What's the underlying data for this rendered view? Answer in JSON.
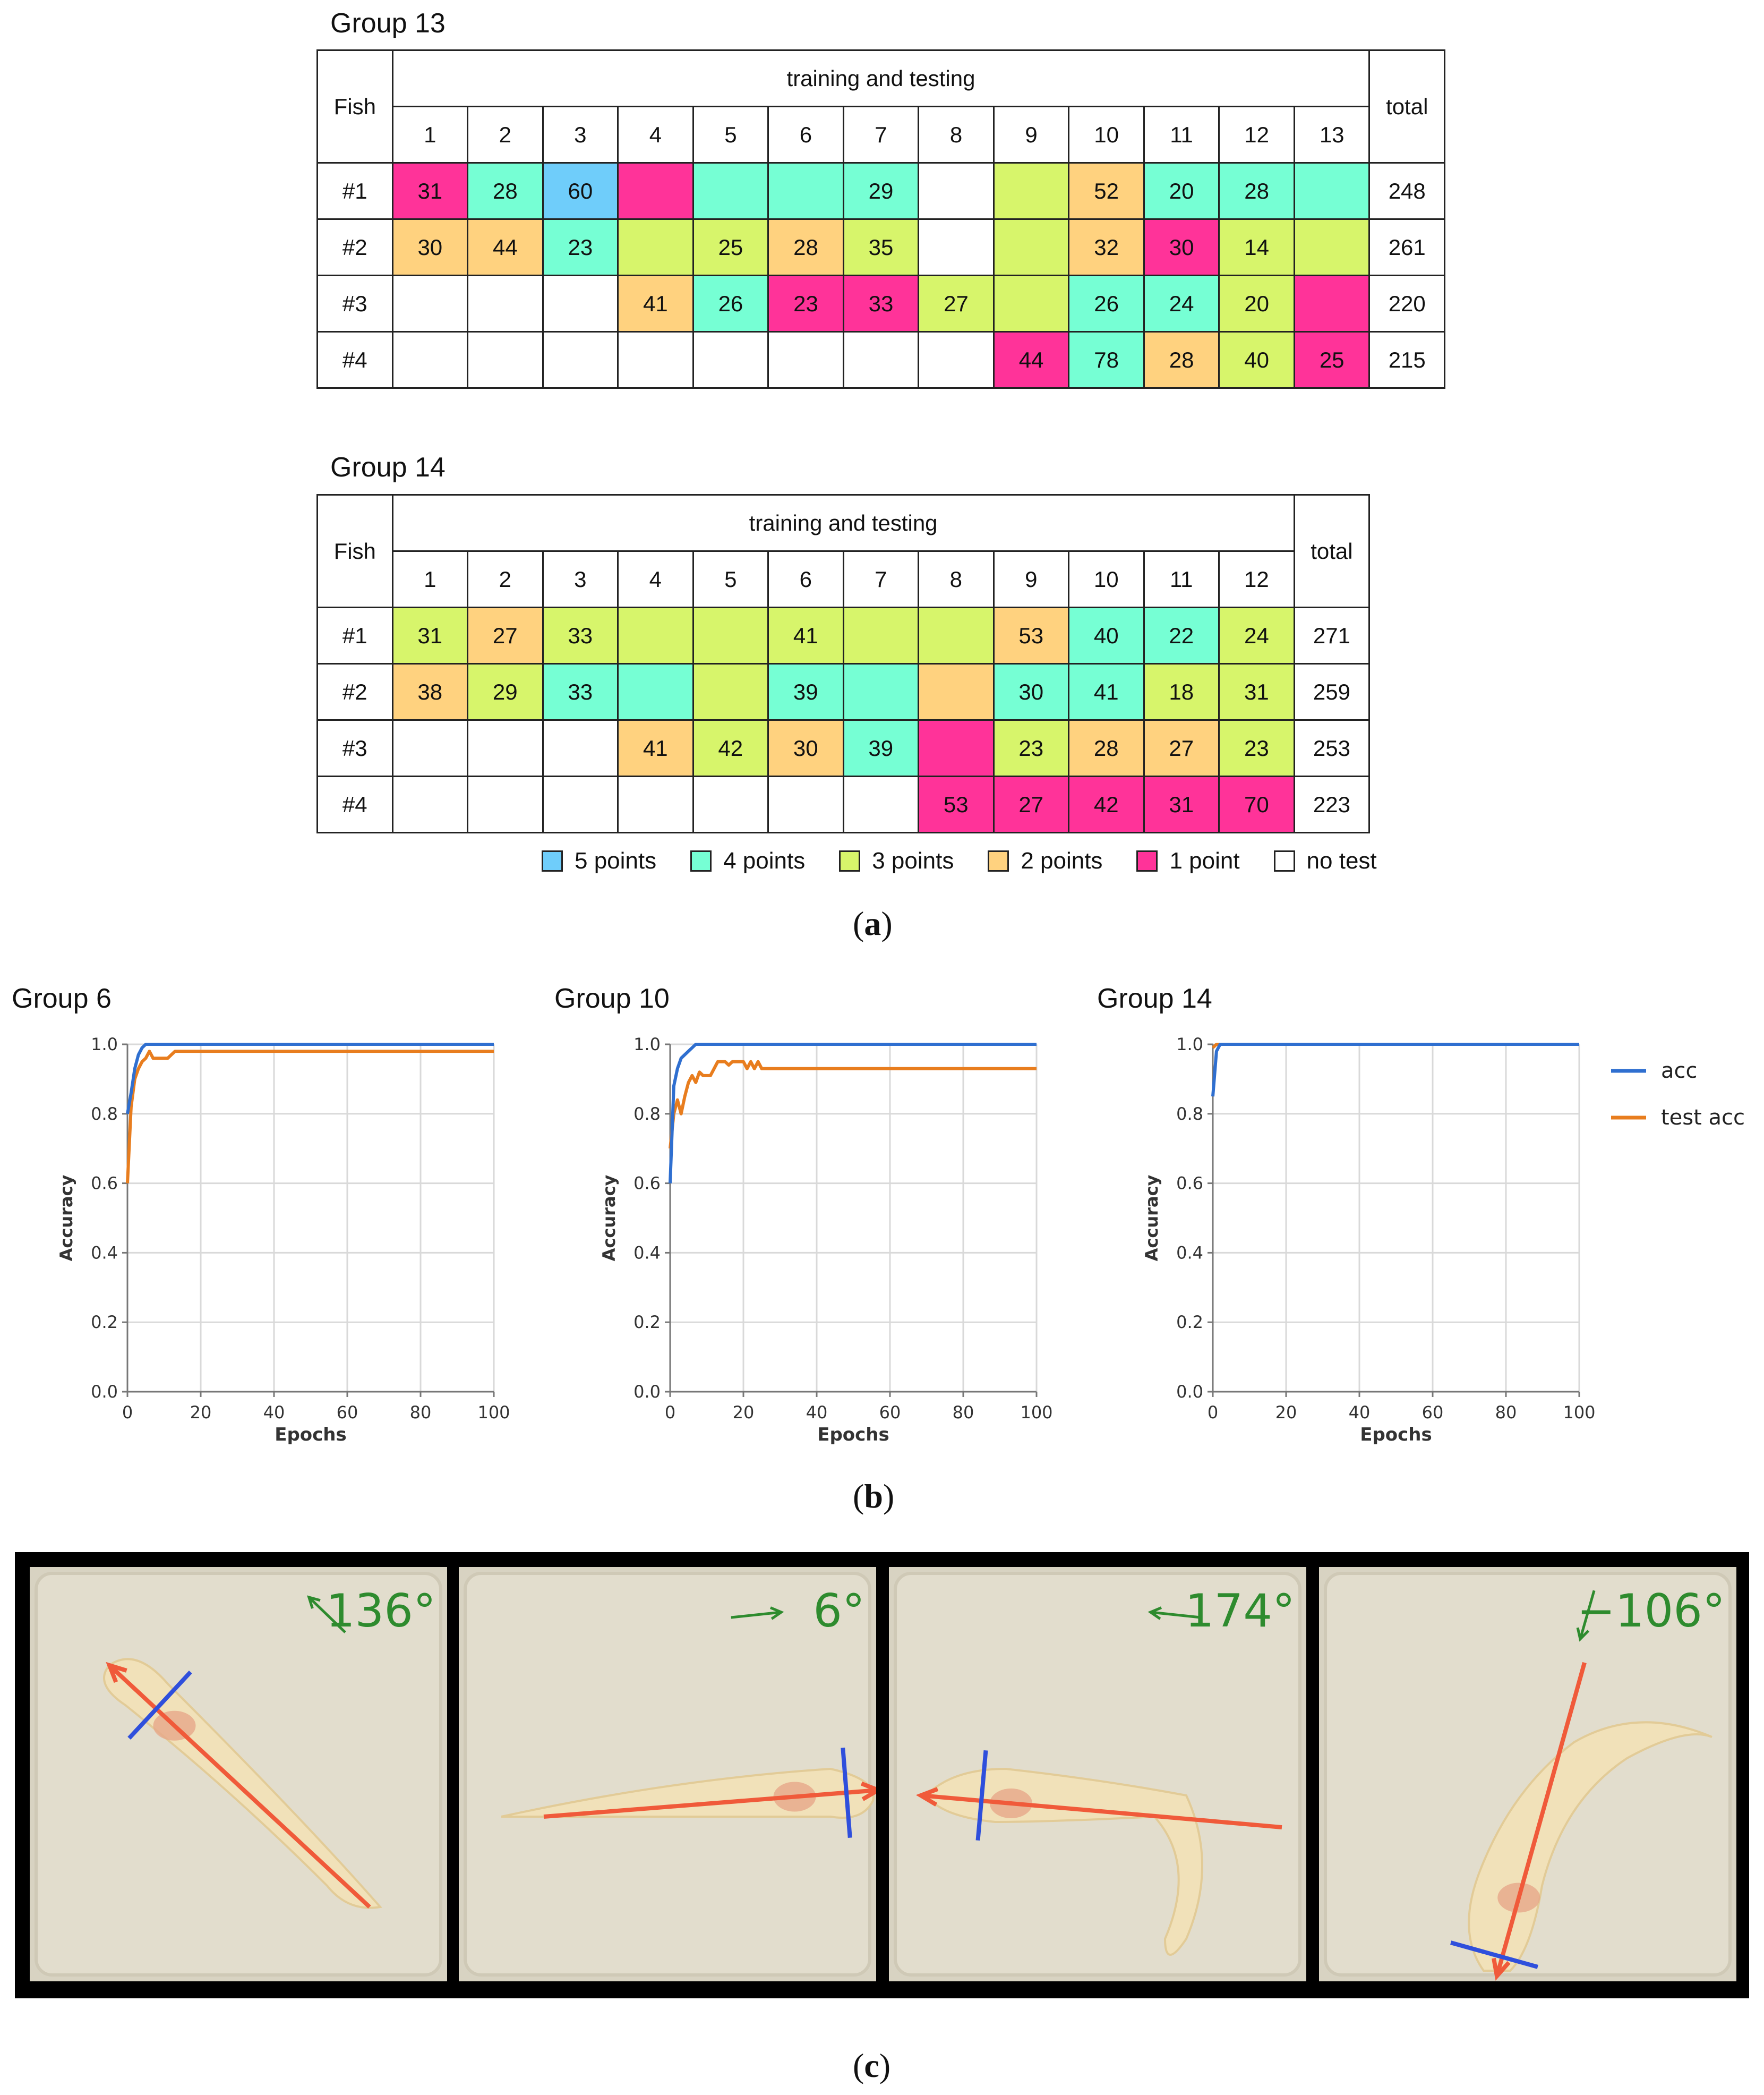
{
  "panel_a": {
    "label": "a",
    "legend": [
      {
        "label": "5 points",
        "color": "#6fcdfa"
      },
      {
        "label": "4 points",
        "color": "#76ffd4"
      },
      {
        "label": "3 points",
        "color": "#d7f56b"
      },
      {
        "label": "2 points",
        "color": "#ffd27f"
      },
      {
        "label": "1 point",
        "color": "#ff3399"
      },
      {
        "label": "no test",
        "color": "#ffffff"
      }
    ],
    "tables": [
      {
        "title": "Group 13",
        "fish_header": "Fish",
        "group_header": "training and testing",
        "total_header": "total",
        "columns": [
          "1",
          "2",
          "3",
          "4",
          "5",
          "6",
          "7",
          "8",
          "9",
          "10",
          "11",
          "12",
          "13"
        ],
        "rows": [
          {
            "fish": "#1",
            "total": "248",
            "cells": [
              {
                "v": "31",
                "c": "1"
              },
              {
                "v": "28",
                "c": "4"
              },
              {
                "v": "60",
                "c": "5"
              },
              {
                "v": "",
                "c": "1"
              },
              {
                "v": "",
                "c": "4"
              },
              {
                "v": "",
                "c": "4"
              },
              {
                "v": "29",
                "c": "4"
              },
              {
                "v": "",
                "c": "0"
              },
              {
                "v": "",
                "c": "3"
              },
              {
                "v": "52",
                "c": "2"
              },
              {
                "v": "20",
                "c": "4"
              },
              {
                "v": "28",
                "c": "4"
              },
              {
                "v": "",
                "c": "4"
              }
            ]
          },
          {
            "fish": "#2",
            "total": "261",
            "cells": [
              {
                "v": "30",
                "c": "2"
              },
              {
                "v": "44",
                "c": "2"
              },
              {
                "v": "23",
                "c": "4"
              },
              {
                "v": "",
                "c": "3"
              },
              {
                "v": "25",
                "c": "3"
              },
              {
                "v": "28",
                "c": "2"
              },
              {
                "v": "35",
                "c": "3"
              },
              {
                "v": "",
                "c": "0"
              },
              {
                "v": "",
                "c": "3"
              },
              {
                "v": "32",
                "c": "2"
              },
              {
                "v": "30",
                "c": "1"
              },
              {
                "v": "14",
                "c": "3"
              },
              {
                "v": "",
                "c": "3"
              }
            ]
          },
          {
            "fish": "#3",
            "total": "220",
            "cells": [
              {
                "v": "",
                "c": "0"
              },
              {
                "v": "",
                "c": "0"
              },
              {
                "v": "",
                "c": "0"
              },
              {
                "v": "41",
                "c": "2"
              },
              {
                "v": "26",
                "c": "4"
              },
              {
                "v": "23",
                "c": "1"
              },
              {
                "v": "33",
                "c": "1"
              },
              {
                "v": "27",
                "c": "3"
              },
              {
                "v": "",
                "c": "3"
              },
              {
                "v": "26",
                "c": "4"
              },
              {
                "v": "24",
                "c": "4"
              },
              {
                "v": "20",
                "c": "3"
              },
              {
                "v": "",
                "c": "1"
              }
            ]
          },
          {
            "fish": "#4",
            "total": "215",
            "cells": [
              {
                "v": "",
                "c": "0"
              },
              {
                "v": "",
                "c": "0"
              },
              {
                "v": "",
                "c": "0"
              },
              {
                "v": "",
                "c": "0"
              },
              {
                "v": "",
                "c": "0"
              },
              {
                "v": "",
                "c": "0"
              },
              {
                "v": "",
                "c": "0"
              },
              {
                "v": "",
                "c": "0"
              },
              {
                "v": "44",
                "c": "1"
              },
              {
                "v": "78",
                "c": "4"
              },
              {
                "v": "28",
                "c": "2"
              },
              {
                "v": "40",
                "c": "3"
              },
              {
                "v": "25",
                "c": "1"
              }
            ]
          }
        ]
      },
      {
        "title": "Group 14",
        "fish_header": "Fish",
        "group_header": "training and testing",
        "total_header": "total",
        "columns": [
          "1",
          "2",
          "3",
          "4",
          "5",
          "6",
          "7",
          "8",
          "9",
          "10",
          "11",
          "12"
        ],
        "rows": [
          {
            "fish": "#1",
            "total": "271",
            "cells": [
              {
                "v": "31",
                "c": "3"
              },
              {
                "v": "27",
                "c": "2"
              },
              {
                "v": "33",
                "c": "3"
              },
              {
                "v": "",
                "c": "3"
              },
              {
                "v": "",
                "c": "3"
              },
              {
                "v": "41",
                "c": "3"
              },
              {
                "v": "",
                "c": "3"
              },
              {
                "v": "",
                "c": "3"
              },
              {
                "v": "53",
                "c": "2"
              },
              {
                "v": "40",
                "c": "4"
              },
              {
                "v": "22",
                "c": "4"
              },
              {
                "v": "24",
                "c": "3"
              }
            ]
          },
          {
            "fish": "#2",
            "total": "259",
            "cells": [
              {
                "v": "38",
                "c": "2"
              },
              {
                "v": "29",
                "c": "3"
              },
              {
                "v": "33",
                "c": "4"
              },
              {
                "v": "",
                "c": "4"
              },
              {
                "v": "",
                "c": "3"
              },
              {
                "v": "39",
                "c": "4"
              },
              {
                "v": "",
                "c": "4"
              },
              {
                "v": "",
                "c": "2"
              },
              {
                "v": "30",
                "c": "4"
              },
              {
                "v": "41",
                "c": "4"
              },
              {
                "v": "18",
                "c": "3"
              },
              {
                "v": "31",
                "c": "3"
              }
            ]
          },
          {
            "fish": "#3",
            "total": "253",
            "cells": [
              {
                "v": "",
                "c": "0"
              },
              {
                "v": "",
                "c": "0"
              },
              {
                "v": "",
                "c": "0"
              },
              {
                "v": "41",
                "c": "2"
              },
              {
                "v": "42",
                "c": "3"
              },
              {
                "v": "30",
                "c": "2"
              },
              {
                "v": "39",
                "c": "4"
              },
              {
                "v": "",
                "c": "1"
              },
              {
                "v": "23",
                "c": "3"
              },
              {
                "v": "28",
                "c": "2"
              },
              {
                "v": "27",
                "c": "2"
              },
              {
                "v": "23",
                "c": "3"
              }
            ]
          },
          {
            "fish": "#4",
            "total": "223",
            "cells": [
              {
                "v": "",
                "c": "0"
              },
              {
                "v": "",
                "c": "0"
              },
              {
                "v": "",
                "c": "0"
              },
              {
                "v": "",
                "c": "0"
              },
              {
                "v": "",
                "c": "0"
              },
              {
                "v": "",
                "c": "0"
              },
              {
                "v": "",
                "c": "0"
              },
              {
                "v": "53",
                "c": "1"
              },
              {
                "v": "27",
                "c": "1"
              },
              {
                "v": "42",
                "c": "1"
              },
              {
                "v": "31",
                "c": "1"
              },
              {
                "v": "70",
                "c": "1"
              }
            ]
          }
        ]
      }
    ]
  },
  "panel_b": {
    "label": "b",
    "legend": [
      {
        "name": "acc",
        "color": "#2f6fd0"
      },
      {
        "name": "test acc",
        "color": "#e87d1e"
      }
    ]
  },
  "chart_data": [
    {
      "type": "line",
      "title": "Group 6",
      "xlabel": "Epochs",
      "ylabel": "Accuracy",
      "xlim": [
        0,
        100
      ],
      "ylim": [
        0.0,
        1.0
      ],
      "xticks": [
        "0",
        "20",
        "40",
        "60",
        "80",
        "100"
      ],
      "yticks": [
        "0.0",
        "0.2",
        "0.4",
        "0.6",
        "0.8",
        "1.0"
      ],
      "grid": true,
      "series": [
        {
          "name": "acc",
          "x": [
            0,
            1,
            2,
            3,
            4,
            5,
            6,
            8,
            100
          ],
          "y": [
            0.8,
            0.86,
            0.93,
            0.97,
            0.99,
            1.0,
            1.0,
            1.0,
            1.0
          ]
        },
        {
          "name": "test acc",
          "x": [
            0,
            1,
            2,
            3,
            4,
            5,
            6,
            7,
            8,
            9,
            10,
            11,
            12,
            13,
            14,
            100
          ],
          "y": [
            0.6,
            0.82,
            0.9,
            0.93,
            0.95,
            0.96,
            0.98,
            0.96,
            0.96,
            0.96,
            0.96,
            0.96,
            0.97,
            0.98,
            0.98,
            0.98
          ]
        }
      ]
    },
    {
      "type": "line",
      "title": "Group 10",
      "xlabel": "Epochs",
      "ylabel": "Accuracy",
      "xlim": [
        0,
        100
      ],
      "ylim": [
        0.0,
        1.0
      ],
      "xticks": [
        "0",
        "20",
        "40",
        "60",
        "80",
        "100"
      ],
      "yticks": [
        "0.0",
        "0.2",
        "0.4",
        "0.6",
        "0.8",
        "1.0"
      ],
      "grid": true,
      "series": [
        {
          "name": "acc",
          "x": [
            0,
            1,
            2,
            3,
            4,
            5,
            6,
            7,
            8,
            100
          ],
          "y": [
            0.6,
            0.88,
            0.93,
            0.96,
            0.97,
            0.98,
            0.99,
            1.0,
            1.0,
            1.0
          ]
        },
        {
          "name": "test acc",
          "x": [
            0,
            1,
            2,
            3,
            4,
            5,
            6,
            7,
            8,
            9,
            10,
            11,
            12,
            13,
            14,
            15,
            16,
            17,
            18,
            19,
            20,
            21,
            22,
            23,
            24,
            25,
            26,
            100
          ],
          "y": [
            0.7,
            0.8,
            0.84,
            0.8,
            0.85,
            0.89,
            0.91,
            0.89,
            0.92,
            0.91,
            0.91,
            0.91,
            0.93,
            0.95,
            0.95,
            0.95,
            0.94,
            0.95,
            0.95,
            0.95,
            0.95,
            0.93,
            0.95,
            0.93,
            0.95,
            0.93,
            0.93,
            0.93
          ]
        }
      ]
    },
    {
      "type": "line",
      "title": "Group 14",
      "xlabel": "Epochs",
      "ylabel": "Accuracy",
      "xlim": [
        0,
        100
      ],
      "ylim": [
        0.0,
        1.0
      ],
      "xticks": [
        "0",
        "20",
        "40",
        "60",
        "80",
        "100"
      ],
      "yticks": [
        "0.0",
        "0.2",
        "0.4",
        "0.6",
        "0.8",
        "1.0"
      ],
      "grid": true,
      "series": [
        {
          "name": "acc",
          "x": [
            0,
            1,
            2,
            3,
            100
          ],
          "y": [
            0.85,
            0.98,
            1.0,
            1.0,
            1.0
          ]
        },
        {
          "name": "test acc",
          "x": [
            0,
            1,
            2,
            100
          ],
          "y": [
            0.99,
            1.0,
            1.0,
            1.0
          ]
        }
      ]
    }
  ],
  "panel_c": {
    "label": "c",
    "photos": [
      {
        "angle": "136°",
        "angle_deg": 136
      },
      {
        "angle": "6°",
        "angle_deg": 6
      },
      {
        "angle": "174°",
        "angle_deg": 174
      },
      {
        "angle": "−106°",
        "angle_deg": -106
      }
    ],
    "colors": {
      "heading": "#f05a3a",
      "cross": "#2f4fdc",
      "angle_text": "#2e8b2e",
      "tank": "#d8d3c2"
    }
  }
}
